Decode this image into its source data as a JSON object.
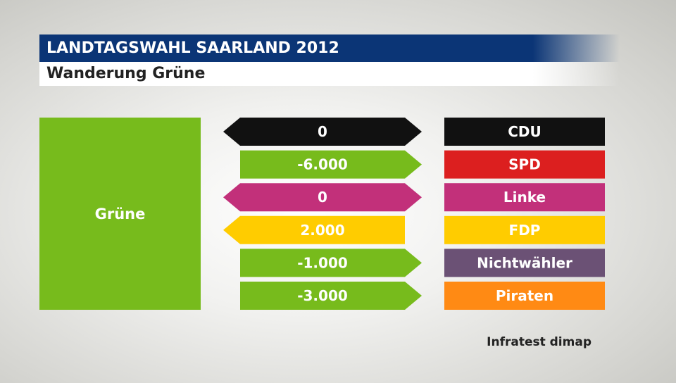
{
  "header": {
    "title": "LANDTAGSWAHL SAARLAND 2012",
    "subtitle": "Wanderung Grüne"
  },
  "source": "Infratest dimap",
  "chart_data": {
    "type": "bar",
    "title": "LANDTAGSWAHL SAARLAND 2012",
    "subtitle": "Wanderung Grüne",
    "party": "Grüne",
    "party_color": "#77bb1c",
    "rows": [
      {
        "label": "CDU",
        "value": 0,
        "value_text": "0",
        "color": "#111111",
        "arrow_color": "#111111",
        "arrow": "both"
      },
      {
        "label": "SPD",
        "value": -6000,
        "value_text": "-6.000",
        "color": "#dc1f1f",
        "arrow_color": "#77bb1c",
        "arrow": "right"
      },
      {
        "label": "Linke",
        "value": 0,
        "value_text": "0",
        "color": "#c2307a",
        "arrow_color": "#c2307a",
        "arrow": "both"
      },
      {
        "label": "FDP",
        "value": 2000,
        "value_text": "2.000",
        "color": "#ffcc00",
        "arrow_color": "#ffcc00",
        "arrow": "left"
      },
      {
        "label": "Nichtwähler",
        "value": -1000,
        "value_text": "-1.000",
        "color": "#6b5175",
        "arrow_color": "#77bb1c",
        "arrow": "right"
      },
      {
        "label": "Piraten",
        "value": -3000,
        "value_text": "-3.000",
        "color": "#ff8a14",
        "arrow_color": "#77bb1c",
        "arrow": "right"
      }
    ]
  }
}
